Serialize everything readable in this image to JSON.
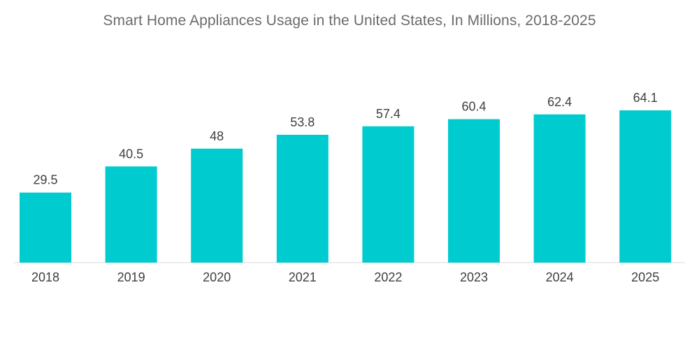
{
  "chart_data": {
    "type": "bar",
    "title": "Smart Home Appliances Usage in the United States, In Millions, 2018-2025",
    "categories": [
      "2018",
      "2019",
      "2020",
      "2021",
      "2022",
      "2023",
      "2024",
      "2025"
    ],
    "values": [
      29.5,
      40.5,
      48,
      53.8,
      57.4,
      60.4,
      62.4,
      64.1
    ],
    "value_labels": [
      "29.5",
      "40.5",
      "48",
      "53.8",
      "57.4",
      "60.4",
      "62.4",
      "64.1"
    ],
    "xlabel": "",
    "ylabel": "",
    "ylim": [
      0,
      64.1
    ],
    "grid": false,
    "legend": "none",
    "bar_color": "#00cccf"
  }
}
